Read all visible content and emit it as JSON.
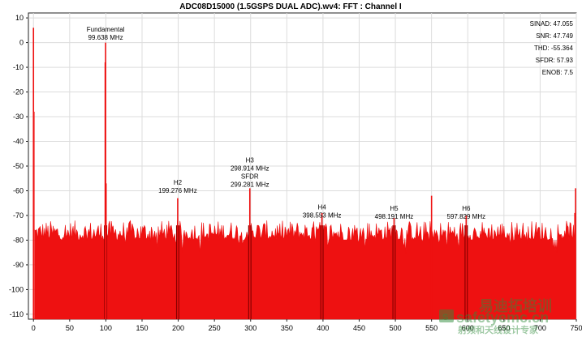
{
  "chart_data": {
    "type": "bar",
    "title": "ADC08D15000 (1.5GSPS DUAL ADC).wv4: FFT : Channel I",
    "xlabel": "",
    "ylabel": "",
    "xlim": [
      -7,
      750
    ],
    "ylim": [
      -112,
      12
    ],
    "x_ticks": [
      0,
      50,
      100,
      150,
      200,
      250,
      300,
      350,
      400,
      450,
      500,
      550,
      600,
      650,
      700,
      750
    ],
    "y_ticks": [
      10,
      0,
      -10,
      -20,
      -30,
      -40,
      -50,
      -60,
      -70,
      -80,
      -90,
      -100,
      -110
    ],
    "grid": true,
    "series_color": "#ee1111",
    "harmonic_color": "#8b0000",
    "noise_floor_db": {
      "base": -84,
      "top_range": [
        -80,
        -72
      ]
    },
    "spikes": [
      {
        "x": 0,
        "y": 6
      },
      {
        "x": 0.6,
        "y": -28
      },
      {
        "x": 99.638,
        "y": 0
      },
      {
        "x": 99.1,
        "y": -8
      },
      {
        "x": 100.3,
        "y": -57
      },
      {
        "x": 199.276,
        "y": -63
      },
      {
        "x": 298.914,
        "y": -59
      },
      {
        "x": 398.553,
        "y": -69
      },
      {
        "x": 498.191,
        "y": -71
      },
      {
        "x": 597.829,
        "y": -70
      },
      {
        "x": 550,
        "y": -62
      },
      {
        "x": 749,
        "y": -59
      },
      {
        "x": 748,
        "y": -69
      }
    ],
    "harmonic_bands": [
      99.638,
      199.276,
      298.914,
      398.553,
      498.191,
      597.829
    ],
    "annotations": [
      {
        "x": 99.638,
        "lines": [
          "Fundamental",
          "99.638 MHz"
        ],
        "y": 4.5
      },
      {
        "x": 199.276,
        "lines": [
          "H2",
          "199.276 MHz"
        ],
        "y": -57.5
      },
      {
        "x": 298.914,
        "lines": [
          "H3",
          "298.914 MHz",
          "SFDR",
          "299.281 MHz"
        ],
        "y": -48.5
      },
      {
        "x": 398.553,
        "lines": [
          "H4",
          "398.553 MHz"
        ],
        "y": -67.5
      },
      {
        "x": 498.191,
        "lines": [
          "H5",
          "498.191 MHz"
        ],
        "y": -68
      },
      {
        "x": 597.829,
        "lines": [
          "H6",
          "597.829 MHz"
        ],
        "y": -68
      }
    ],
    "stats": [
      {
        "label": "SINAD:",
        "value": "47.055"
      },
      {
        "label": "SNR:",
        "value": "47.749"
      },
      {
        "label": "THD:",
        "value": "-55.364"
      },
      {
        "label": "SFDR:",
        "value": "57.93"
      },
      {
        "label": "ENOB:",
        "value": "7.5"
      }
    ]
  },
  "watermark": {
    "logo_text": "S",
    "line1": "safetyemc.cn",
    "line2": "射频和天线设计专家",
    "line3": "易迪拓培训"
  }
}
